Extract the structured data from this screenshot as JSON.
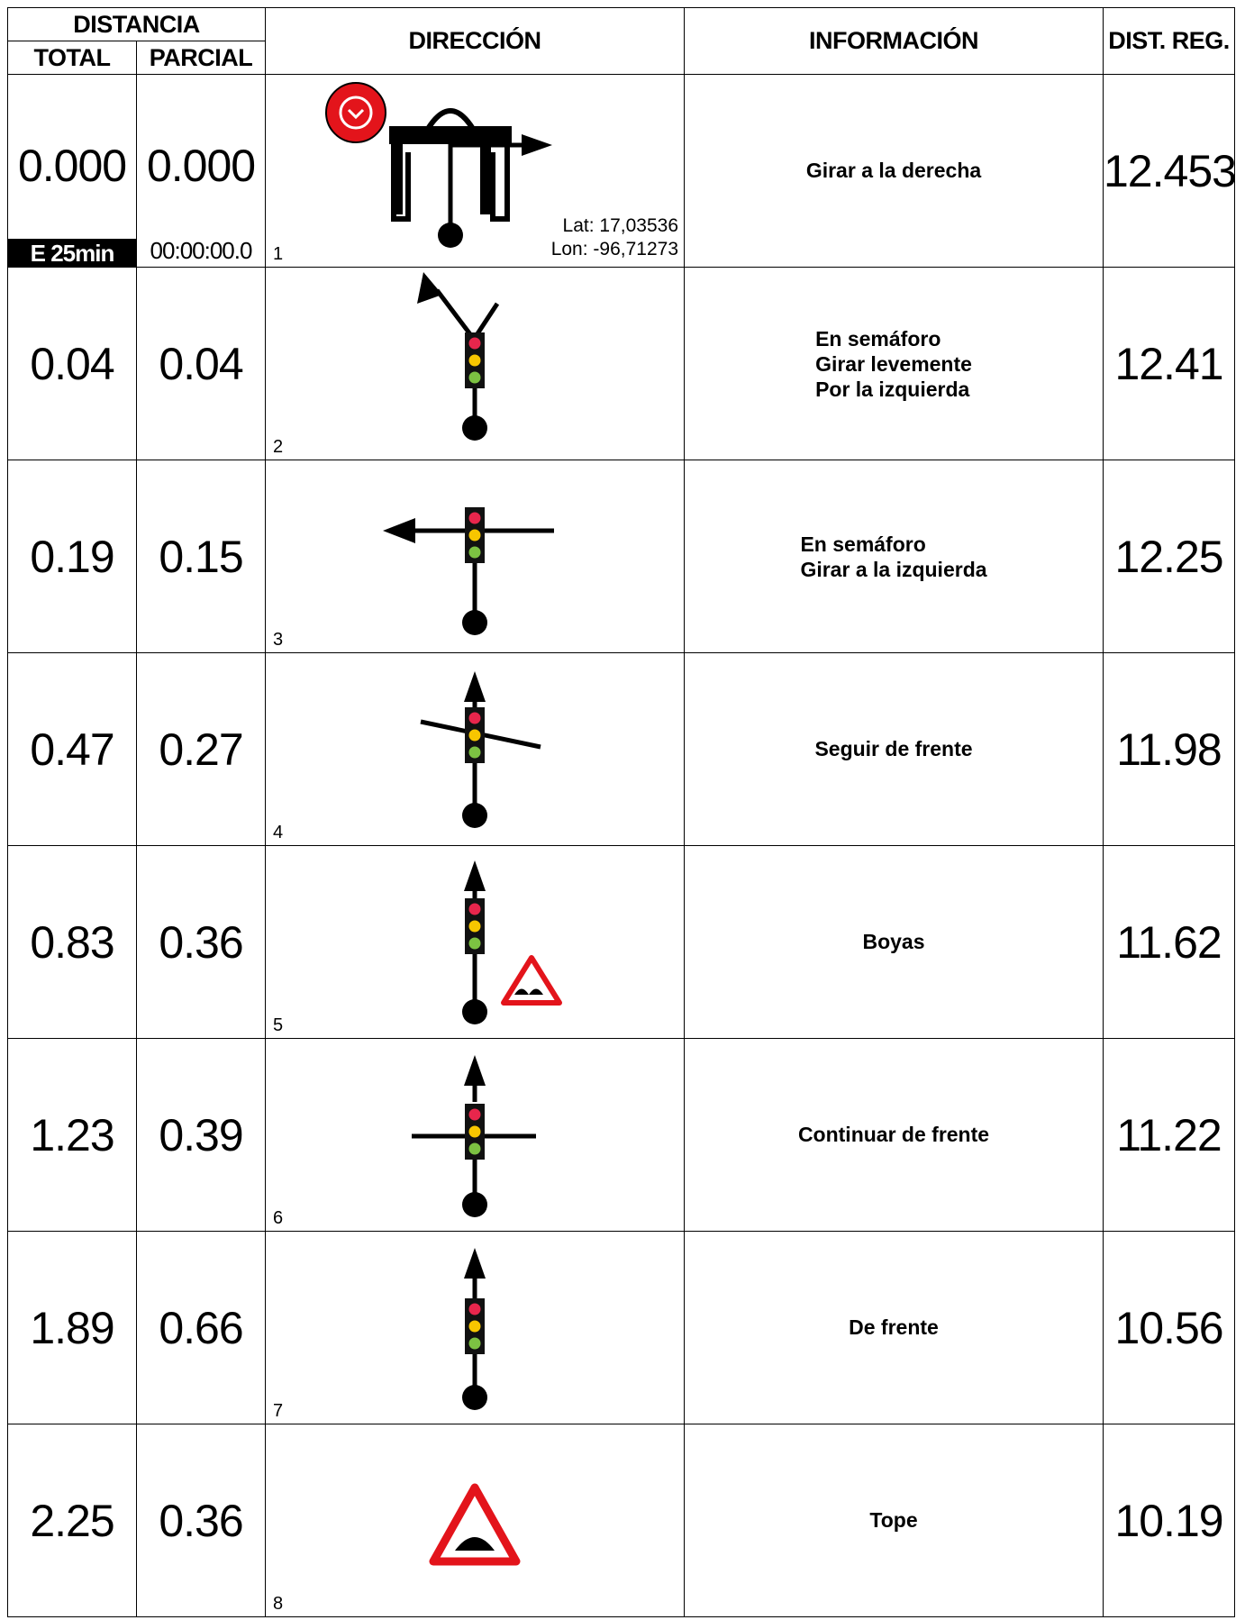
{
  "header": {
    "distancia": "DISTANCIA",
    "total": "TOTAL",
    "parcial": "PARCIAL",
    "direccion": "DIRECCIÓN",
    "informacion": "INFORMACIÓN",
    "dist_reg": "DIST. REG."
  },
  "colors": {
    "red_light": "#e8264c",
    "yellow_light": "#f7c600",
    "green_light": "#7cc242",
    "warning_red": "#e3141b",
    "clock_red": "#e3141b"
  },
  "rows": [
    {
      "total": "0.000",
      "parcial": "0.000",
      "step": "1",
      "dist_reg": "12.453",
      "info": [
        "Girar a la derecha"
      ],
      "icon": "gate-clock-turn-right-icon",
      "e_tag": "E 25min",
      "chrono": "00:00:00.0",
      "lat": "Lat: 17,03536",
      "lon": "Lon: -96,71273"
    },
    {
      "total": "0.04",
      "parcial": "0.04",
      "step": "2",
      "dist_reg": "12.41",
      "info": [
        "En semáforo",
        "Girar levemente",
        "Por la izquierda"
      ],
      "icon": "traffic-light-slight-left-icon"
    },
    {
      "total": "0.19",
      "parcial": "0.15",
      "step": "3",
      "dist_reg": "12.25",
      "info": [
        "En semáforo",
        "Girar a la izquierda"
      ],
      "icon": "traffic-light-turn-left-icon"
    },
    {
      "total": "0.47",
      "parcial": "0.27",
      "step": "4",
      "dist_reg": "11.98",
      "info": [
        "Seguir de frente"
      ],
      "icon": "traffic-light-straight-diagonal-cross-icon"
    },
    {
      "total": "0.83",
      "parcial": "0.36",
      "step": "5",
      "dist_reg": "11.62",
      "info": [
        "Boyas"
      ],
      "icon": "traffic-light-straight-bumps-warning-icon"
    },
    {
      "total": "1.23",
      "parcial": "0.39",
      "step": "6",
      "dist_reg": "11.22",
      "info": [
        "Continuar de frente"
      ],
      "icon": "traffic-light-straight-crossroad-icon"
    },
    {
      "total": "1.89",
      "parcial": "0.66",
      "step": "7",
      "dist_reg": "10.56",
      "info": [
        "De frente"
      ],
      "icon": "traffic-light-straight-icon"
    },
    {
      "total": "2.25",
      "parcial": "0.36",
      "step": "8",
      "dist_reg": "10.19",
      "info": [
        "Tope"
      ],
      "icon": "speed-bump-warning-icon"
    }
  ]
}
